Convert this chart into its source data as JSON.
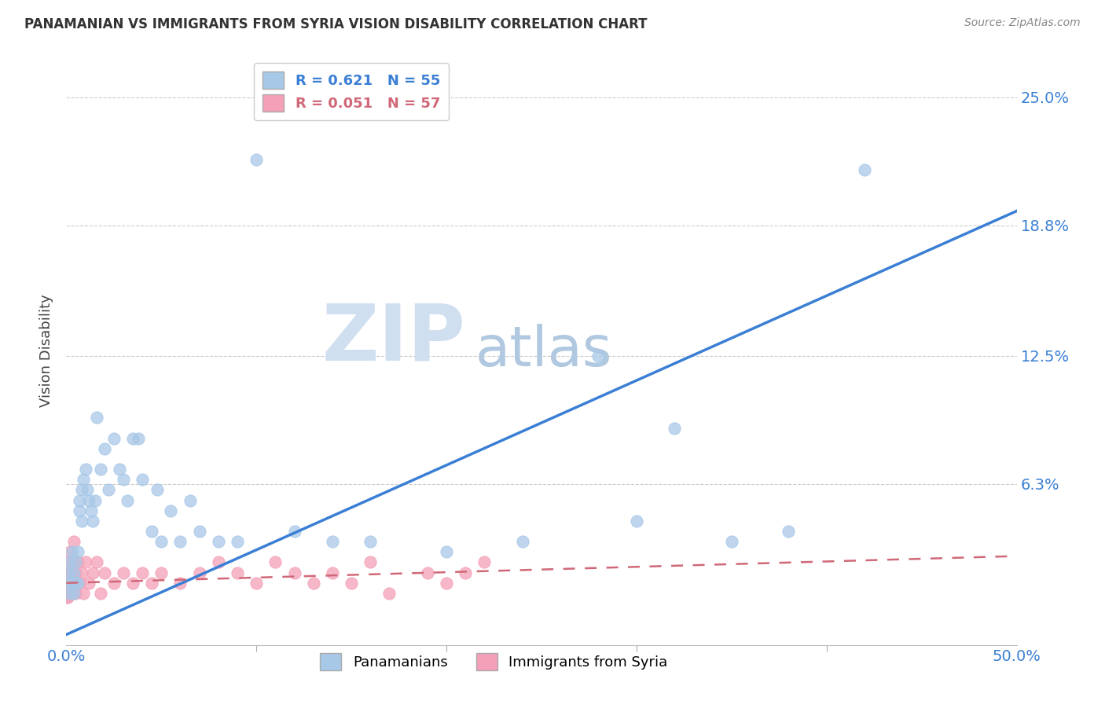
{
  "title": "PANAMANIAN VS IMMIGRANTS FROM SYRIA VISION DISABILITY CORRELATION CHART",
  "source": "Source: ZipAtlas.com",
  "ylabel": "Vision Disability",
  "yticks": [
    "25.0%",
    "18.8%",
    "12.5%",
    "6.3%"
  ],
  "ytick_vals": [
    0.25,
    0.188,
    0.125,
    0.063
  ],
  "xlim": [
    0.0,
    0.5
  ],
  "ylim": [
    -0.015,
    0.27
  ],
  "panamanian_color": "#a8c8e8",
  "syria_color": "#f4a0b8",
  "trendline_blue_color": "#3a7fd4",
  "trendline_pink_color": "#d06878",
  "watermark_zip": "ZIP",
  "watermark_atlas": "atlas",
  "watermark_color_zip": "#d0dff0",
  "watermark_color_atlas": "#b0c8e0",
  "pan_trendline_x": [
    0.0,
    0.5
  ],
  "pan_trendline_y": [
    -0.01,
    0.195
  ],
  "syr_trendline_x": [
    0.0,
    0.5
  ],
  "syr_trendline_y": [
    0.015,
    0.028
  ],
  "panamanian_x": [
    0.001,
    0.001,
    0.002,
    0.002,
    0.003,
    0.003,
    0.004,
    0.004,
    0.005,
    0.005,
    0.006,
    0.006,
    0.007,
    0.007,
    0.008,
    0.008,
    0.009,
    0.01,
    0.011,
    0.012,
    0.013,
    0.014,
    0.015,
    0.016,
    0.018,
    0.02,
    0.022,
    0.025,
    0.028,
    0.03,
    0.032,
    0.035,
    0.038,
    0.04,
    0.045,
    0.048,
    0.05,
    0.055,
    0.06,
    0.065,
    0.07,
    0.08,
    0.09,
    0.1,
    0.12,
    0.14,
    0.16,
    0.2,
    0.24,
    0.28,
    0.3,
    0.32,
    0.35,
    0.38,
    0.42
  ],
  "panamanian_y": [
    0.02,
    0.015,
    0.025,
    0.01,
    0.03,
    0.015,
    0.02,
    0.01,
    0.025,
    0.015,
    0.03,
    0.015,
    0.055,
    0.05,
    0.06,
    0.045,
    0.065,
    0.07,
    0.06,
    0.055,
    0.05,
    0.045,
    0.055,
    0.095,
    0.07,
    0.08,
    0.06,
    0.085,
    0.07,
    0.065,
    0.055,
    0.085,
    0.085,
    0.065,
    0.04,
    0.06,
    0.035,
    0.05,
    0.035,
    0.055,
    0.04,
    0.035,
    0.035,
    0.22,
    0.04,
    0.035,
    0.035,
    0.03,
    0.035,
    0.125,
    0.045,
    0.09,
    0.035,
    0.04,
    0.215
  ],
  "syria_x": [
    0.0002,
    0.0003,
    0.0004,
    0.0005,
    0.0006,
    0.0007,
    0.0008,
    0.0009,
    0.001,
    0.001,
    0.0012,
    0.0013,
    0.0015,
    0.0016,
    0.0018,
    0.002,
    0.002,
    0.0022,
    0.0025,
    0.003,
    0.003,
    0.004,
    0.004,
    0.005,
    0.005,
    0.006,
    0.007,
    0.008,
    0.009,
    0.01,
    0.012,
    0.014,
    0.016,
    0.018,
    0.02,
    0.025,
    0.03,
    0.035,
    0.04,
    0.045,
    0.05,
    0.06,
    0.07,
    0.08,
    0.09,
    0.1,
    0.11,
    0.12,
    0.13,
    0.14,
    0.15,
    0.16,
    0.17,
    0.19,
    0.2,
    0.21,
    0.22
  ],
  "syria_y": [
    0.01,
    0.008,
    0.012,
    0.015,
    0.01,
    0.012,
    0.008,
    0.018,
    0.025,
    0.01,
    0.015,
    0.012,
    0.02,
    0.01,
    0.015,
    0.03,
    0.01,
    0.02,
    0.015,
    0.025,
    0.01,
    0.035,
    0.015,
    0.02,
    0.01,
    0.025,
    0.015,
    0.02,
    0.01,
    0.025,
    0.015,
    0.02,
    0.025,
    0.01,
    0.02,
    0.015,
    0.02,
    0.015,
    0.02,
    0.015,
    0.02,
    0.015,
    0.02,
    0.025,
    0.02,
    0.015,
    0.025,
    0.02,
    0.015,
    0.02,
    0.015,
    0.025,
    0.01,
    0.02,
    0.015,
    0.02,
    0.025
  ]
}
